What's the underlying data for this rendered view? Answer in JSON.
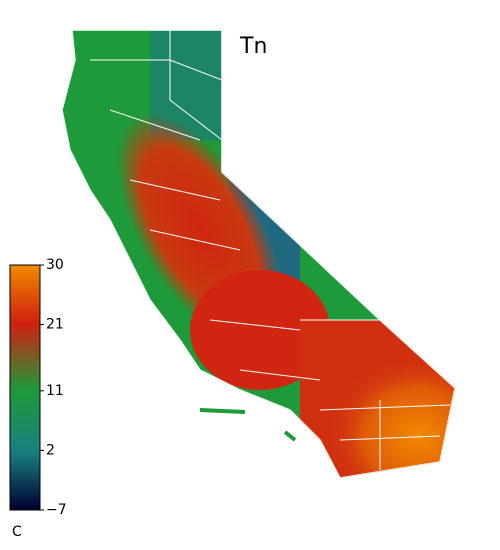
{
  "map": {
    "title": "Tn",
    "colorbar": {
      "lim": [
        -7,
        30
      ],
      "ticks": [
        {
          "value": -7,
          "label": "−7"
        },
        2,
        11,
        21,
        30
      ],
      "unit": "C"
    }
  }
}
